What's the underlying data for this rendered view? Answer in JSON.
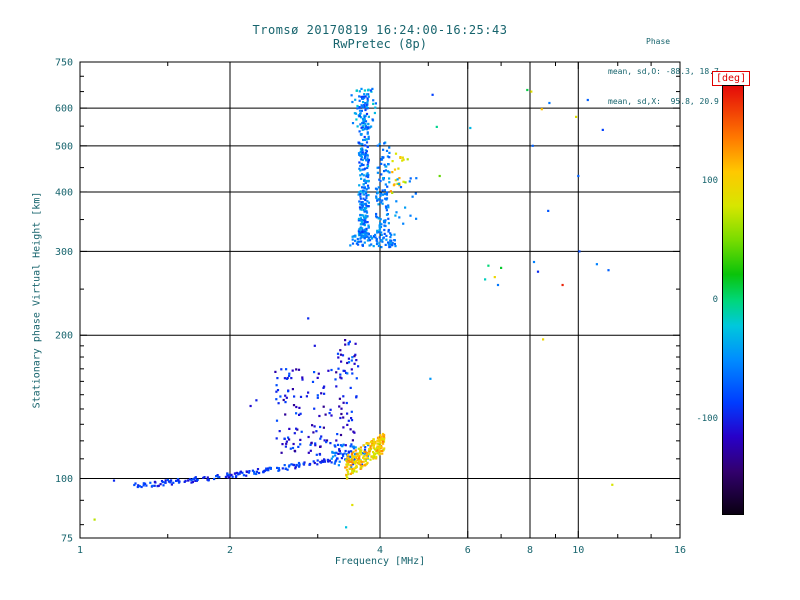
{
  "header": {
    "title": "Tromsø 20170819 16:24:00-16:25:43",
    "subtitle": "RwPretec (8p)"
  },
  "stats": {
    "heading": "Phase",
    "line_o": "mean, sd,O: -88.3, 18.7",
    "line_x": "mean, sd,X:  95.8, 20.9"
  },
  "chart_data": {
    "type": "scatter",
    "title": "Tromsø 20170819 16:24:00-16:25:43",
    "subtitle": "RwPretec (8p)",
    "xlabel": "Frequency [MHz]",
    "ylabel": "Stationary phase Virtual Height [km]",
    "x_scale": "log",
    "x_range": [
      1,
      16
    ],
    "x_ticks": [
      1,
      2,
      4,
      6,
      8,
      10,
      16
    ],
    "x_grid": [
      2,
      4,
      6,
      8,
      10
    ],
    "x_minor": [
      1.5,
      3,
      5,
      7,
      9,
      12,
      14
    ],
    "y_scale": "log",
    "y_range": [
      75,
      750
    ],
    "y_ticks": [
      75,
      100,
      200,
      300,
      400,
      500,
      600,
      750
    ],
    "y_grid": [
      100,
      200,
      300,
      400,
      500,
      600
    ],
    "y_minor": [
      80,
      90,
      110,
      120,
      130,
      140,
      150,
      160,
      170,
      180,
      190,
      250,
      350,
      450,
      550,
      650,
      700
    ],
    "grid": true,
    "color": {
      "label": "[deg]",
      "range": [
        -180,
        180
      ],
      "ticks": [
        100,
        0,
        -100
      ],
      "stops": [
        [
          0.0,
          10,
          0,
          18
        ],
        [
          0.1,
          50,
          0,
          110
        ],
        [
          0.18,
          40,
          0,
          200
        ],
        [
          0.26,
          0,
          60,
          255
        ],
        [
          0.36,
          0,
          140,
          255
        ],
        [
          0.44,
          0,
          200,
          220
        ],
        [
          0.5,
          0,
          215,
          120
        ],
        [
          0.56,
          10,
          195,
          10
        ],
        [
          0.64,
          120,
          220,
          0
        ],
        [
          0.72,
          215,
          230,
          0
        ],
        [
          0.8,
          255,
          200,
          0
        ],
        [
          0.88,
          255,
          120,
          0
        ],
        [
          1.0,
          228,
          10,
          10
        ]
      ]
    },
    "marker_size": 2.2,
    "seed": 42,
    "clusters": [
      {
        "name": "e-region-trace",
        "shape": "htrace",
        "n": 170,
        "f": [
          1.28,
          3.5
        ],
        "h": [
          97,
          111
        ],
        "pow": 1.4,
        "jitter": 1.3,
        "deg": [
          -110,
          -70
        ]
      },
      {
        "name": "e-trace-tail",
        "shape": "blob",
        "n": 55,
        "f": [
          3.2,
          3.8
        ],
        "h": [
          105,
          118
        ],
        "deg": [
          -90,
          -35
        ]
      },
      {
        "name": "e-blob-warm",
        "shape": "htrace",
        "n": 210,
        "f": [
          3.4,
          4.08
        ],
        "h": [
          105,
          119
        ],
        "pow": 1.0,
        "jitter": 6,
        "deg": [
          70,
          135
        ]
      },
      {
        "name": "mid-scatter-blue",
        "shape": "blob",
        "n": 150,
        "f": [
          2.45,
          3.6
        ],
        "h": [
          112,
          170
        ],
        "deg": [
          -135,
          -75
        ]
      },
      {
        "name": "mid-upper-sparse",
        "shape": "blob",
        "n": 28,
        "f": [
          3.28,
          3.62
        ],
        "h": [
          162,
          196
        ],
        "deg": [
          -130,
          -60
        ]
      },
      {
        "name": "f-trace-main",
        "shape": "vline",
        "n": 280,
        "f": [
          3.62,
          3.8
        ],
        "h": [
          322,
          655
        ],
        "bias": 1.35,
        "deg": [
          -90,
          -30
        ]
      },
      {
        "name": "f-top-spread",
        "shape": "blob",
        "n": 40,
        "f": [
          3.5,
          3.95
        ],
        "h": [
          545,
          665
        ],
        "deg": [
          -80,
          -15
        ]
      },
      {
        "name": "f-cusp",
        "shape": "blob",
        "n": 85,
        "f": [
          3.45,
          4.3
        ],
        "h": [
          306,
          328
        ],
        "deg": [
          -80,
          -40
        ]
      },
      {
        "name": "f-branch2",
        "shape": "vline",
        "n": 105,
        "f": [
          3.92,
          4.18
        ],
        "h": [
          328,
          512
        ],
        "bias": 1.2,
        "deg": [
          -75,
          -35
        ]
      },
      {
        "name": "f-branch2-warm",
        "shape": "blob",
        "n": 22,
        "f": [
          4.2,
          4.55
        ],
        "h": [
          395,
          485
        ],
        "deg": [
          55,
          130
        ]
      },
      {
        "name": "f-right-sparse",
        "shape": "blob",
        "n": 16,
        "f": [
          4.25,
          4.75
        ],
        "h": [
          330,
          430
        ],
        "deg": [
          -70,
          -35
        ]
      }
    ],
    "isolated_points": [
      [
        1.07,
        82,
        70
      ],
      [
        1.17,
        99,
        -95
      ],
      [
        2.2,
        142,
        -110
      ],
      [
        2.26,
        146,
        -100
      ],
      [
        2.87,
        217,
        -95
      ],
      [
        2.96,
        190,
        -105
      ],
      [
        3.42,
        79,
        -25
      ],
      [
        3.52,
        88,
        85
      ],
      [
        5.05,
        162,
        -45
      ],
      [
        5.1,
        640,
        -85
      ],
      [
        5.2,
        548,
        -5
      ],
      [
        5.27,
        432,
        45
      ],
      [
        6.07,
        545,
        -30
      ],
      [
        6.5,
        262,
        -15
      ],
      [
        6.6,
        280,
        0
      ],
      [
        6.8,
        265,
        95
      ],
      [
        7.0,
        277,
        15
      ],
      [
        6.9,
        255,
        -60
      ],
      [
        7.9,
        655,
        10
      ],
      [
        8.05,
        650,
        85
      ],
      [
        8.1,
        500,
        -70
      ],
      [
        8.15,
        285,
        -55
      ],
      [
        8.3,
        272,
        -95
      ],
      [
        8.45,
        597,
        110
      ],
      [
        8.5,
        196,
        95
      ],
      [
        8.7,
        365,
        -75
      ],
      [
        8.75,
        615,
        -60
      ],
      [
        9.3,
        255,
        170
      ],
      [
        9.9,
        575,
        85
      ],
      [
        10.0,
        432,
        -70
      ],
      [
        10.05,
        300,
        -80
      ],
      [
        10.45,
        624,
        -70
      ],
      [
        10.9,
        282,
        -55
      ],
      [
        11.2,
        540,
        -85
      ],
      [
        11.5,
        274,
        -70
      ],
      [
        11.7,
        97,
        80
      ]
    ]
  }
}
